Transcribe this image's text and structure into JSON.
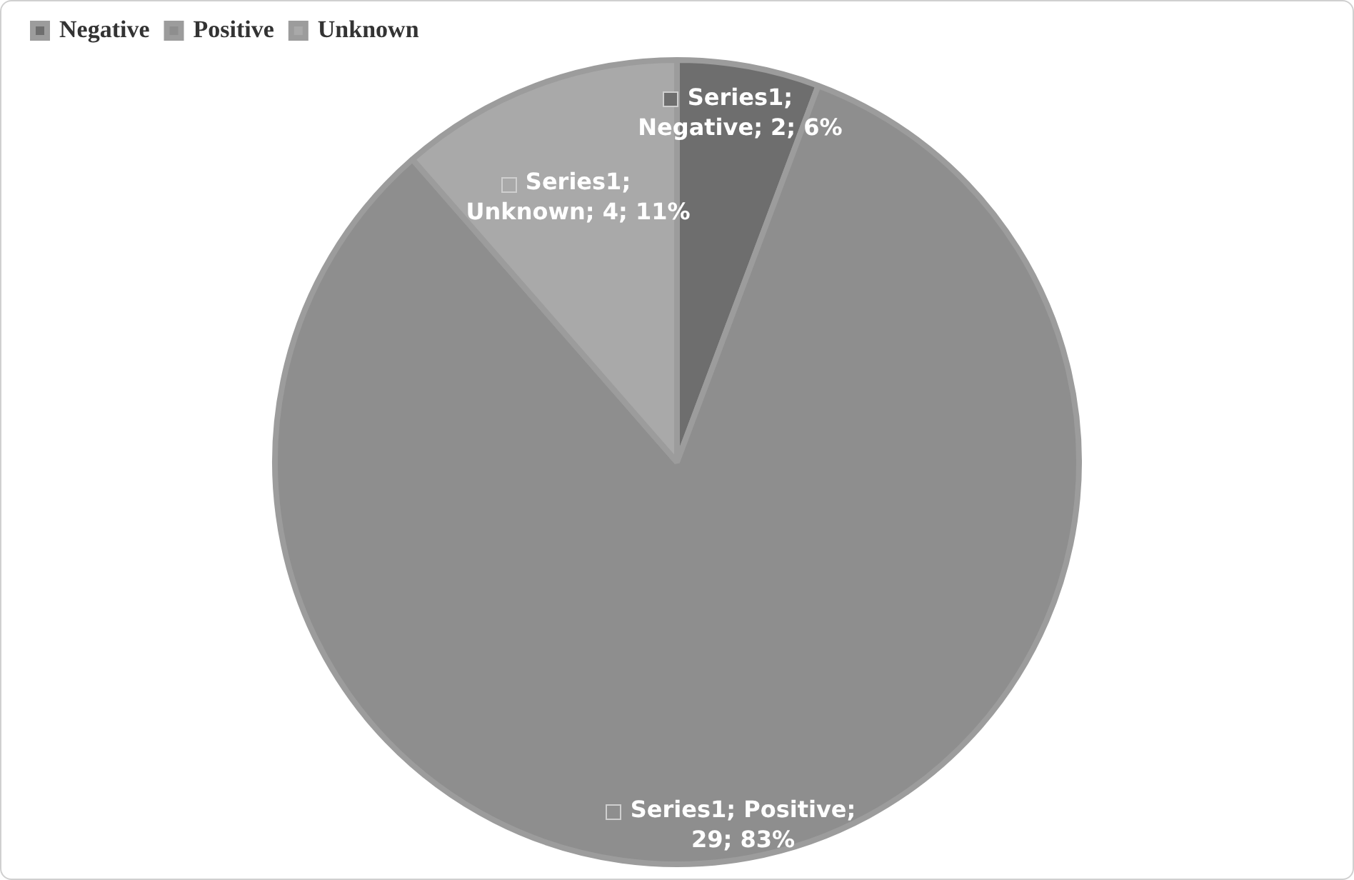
{
  "chart_data": {
    "type": "pie",
    "categories": [
      "Negative",
      "Positive",
      "Unknown"
    ],
    "values": [
      2,
      29,
      4
    ],
    "colors": [
      "#6e6e6e",
      "#8e8e8e",
      "#a9a9a9"
    ],
    "value_labels": [
      "Series1; Negative; 2; 6%",
      "Series1; Positive; 29; 83%",
      "Series1; Unknown; 4; 11%"
    ],
    "legend": "top left"
  }
}
